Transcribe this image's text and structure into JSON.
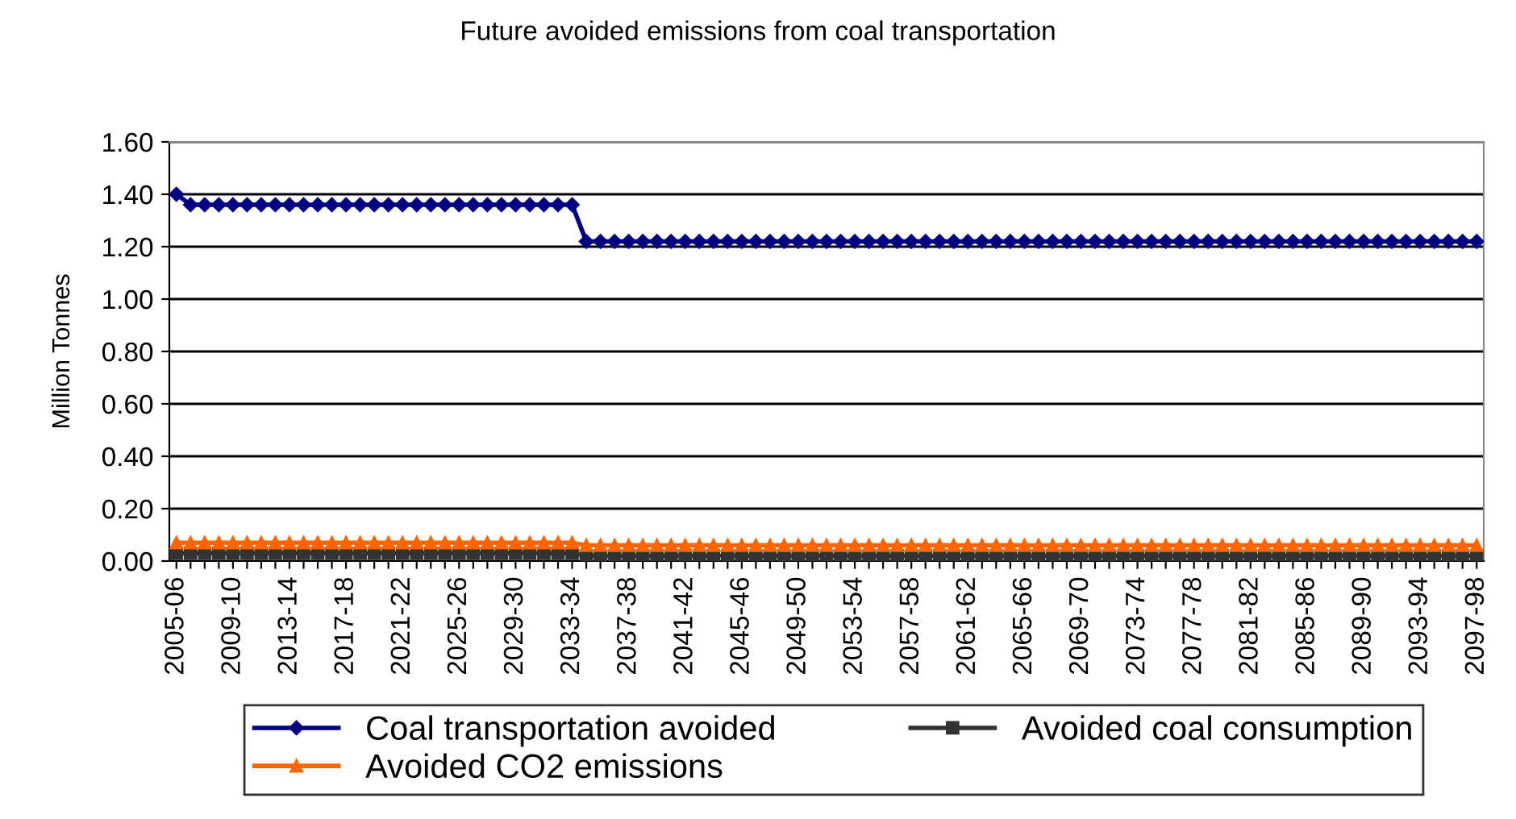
{
  "chart_data": {
    "type": "line",
    "title": "Future avoided emissions from coal transportation",
    "ylabel": "Million Tonnes",
    "categories": [
      "2005-06",
      null,
      null,
      null,
      "2009-10",
      null,
      null,
      null,
      "2013-14",
      null,
      null,
      null,
      "2017-18",
      null,
      null,
      null,
      "2021-22",
      null,
      null,
      null,
      "2025-26",
      null,
      null,
      null,
      "2029-30",
      null,
      null,
      null,
      "2033-34",
      null,
      null,
      null,
      "2037-38",
      null,
      null,
      null,
      "2041-42",
      null,
      null,
      null,
      "2045-46",
      null,
      null,
      null,
      "2049-50",
      null,
      null,
      null,
      "2053-54",
      null,
      null,
      null,
      "2057-58",
      null,
      null,
      null,
      "2061-62",
      null,
      null,
      null,
      "2065-66",
      null,
      null,
      null,
      "2069-70",
      null,
      null,
      null,
      "2073-74",
      null,
      null,
      null,
      "2077-78",
      null,
      null,
      null,
      "2081-82",
      null,
      null,
      null,
      "2085-86",
      null,
      null,
      null,
      "2089-90",
      null,
      null,
      null,
      "2093-94",
      null,
      null,
      null,
      "2097-98"
    ],
    "series": [
      {
        "name": "Coal transportation avoided",
        "color": "#000080",
        "marker": "diamond",
        "values": [
          1.4,
          1.36,
          1.36,
          1.36,
          1.36,
          1.36,
          1.36,
          1.36,
          1.36,
          1.36,
          1.36,
          1.36,
          1.36,
          1.36,
          1.36,
          1.36,
          1.36,
          1.36,
          1.36,
          1.36,
          1.36,
          1.36,
          1.36,
          1.36,
          1.36,
          1.36,
          1.36,
          1.36,
          1.36,
          1.22,
          1.22,
          1.22,
          1.22,
          1.22,
          1.22,
          1.22,
          1.22,
          1.22,
          1.22,
          1.22,
          1.22,
          1.22,
          1.22,
          1.22,
          1.22,
          1.22,
          1.22,
          1.22,
          1.22,
          1.22,
          1.22,
          1.22,
          1.22,
          1.22,
          1.22,
          1.22,
          1.22,
          1.22,
          1.22,
          1.22,
          1.22,
          1.22,
          1.22,
          1.22,
          1.22,
          1.22,
          1.22,
          1.22,
          1.22,
          1.22,
          1.22,
          1.22,
          1.22,
          1.22,
          1.22,
          1.22,
          1.22,
          1.22,
          1.22,
          1.22,
          1.22,
          1.22,
          1.22,
          1.22,
          1.22,
          1.22,
          1.22,
          1.22,
          1.22,
          1.22,
          1.22,
          1.22,
          1.22
        ]
      },
      {
        "name": "Avoided coal consumption",
        "color": "#333333",
        "marker": "square",
        "values": [
          0.03,
          0.03,
          0.03,
          0.03,
          0.03,
          0.03,
          0.03,
          0.03,
          0.03,
          0.03,
          0.03,
          0.03,
          0.03,
          0.03,
          0.03,
          0.03,
          0.03,
          0.03,
          0.03,
          0.03,
          0.03,
          0.03,
          0.03,
          0.03,
          0.03,
          0.03,
          0.03,
          0.03,
          0.03,
          0.02,
          0.02,
          0.02,
          0.02,
          0.02,
          0.02,
          0.02,
          0.02,
          0.02,
          0.02,
          0.02,
          0.02,
          0.02,
          0.02,
          0.02,
          0.02,
          0.02,
          0.02,
          0.02,
          0.02,
          0.02,
          0.02,
          0.02,
          0.02,
          0.02,
          0.02,
          0.02,
          0.02,
          0.02,
          0.02,
          0.02,
          0.02,
          0.02,
          0.02,
          0.02,
          0.02,
          0.02,
          0.02,
          0.02,
          0.02,
          0.02,
          0.02,
          0.02,
          0.02,
          0.02,
          0.02,
          0.02,
          0.02,
          0.02,
          0.02,
          0.02,
          0.02,
          0.02,
          0.02,
          0.02,
          0.02,
          0.02,
          0.02,
          0.02,
          0.02,
          0.02,
          0.02,
          0.02,
          0.02
        ]
      },
      {
        "name": "Avoided CO2 emissions",
        "color": "#ff6600",
        "marker": "triangle",
        "values": [
          0.07,
          0.07,
          0.07,
          0.07,
          0.07,
          0.07,
          0.07,
          0.07,
          0.07,
          0.07,
          0.07,
          0.07,
          0.07,
          0.07,
          0.07,
          0.07,
          0.07,
          0.07,
          0.07,
          0.07,
          0.07,
          0.07,
          0.07,
          0.07,
          0.07,
          0.07,
          0.07,
          0.07,
          0.07,
          0.06,
          0.06,
          0.06,
          0.06,
          0.06,
          0.06,
          0.06,
          0.06,
          0.06,
          0.06,
          0.06,
          0.06,
          0.06,
          0.06,
          0.06,
          0.06,
          0.06,
          0.06,
          0.06,
          0.06,
          0.06,
          0.06,
          0.06,
          0.06,
          0.06,
          0.06,
          0.06,
          0.06,
          0.06,
          0.06,
          0.06,
          0.06,
          0.06,
          0.06,
          0.06,
          0.06,
          0.06,
          0.06,
          0.06,
          0.06,
          0.06,
          0.06,
          0.06,
          0.06,
          0.06,
          0.06,
          0.06,
          0.06,
          0.06,
          0.06,
          0.06,
          0.06,
          0.06,
          0.06,
          0.06,
          0.06,
          0.06,
          0.06,
          0.06,
          0.06,
          0.06,
          0.06,
          0.06,
          0.06
        ]
      }
    ],
    "ylim": [
      0,
      1.6
    ],
    "yticks": [
      {
        "value": 0,
        "label": "0.00"
      },
      {
        "value": 0.2,
        "label": "0.20"
      },
      {
        "value": 0.4,
        "label": "0.40"
      },
      {
        "value": 0.6,
        "label": "0.60"
      },
      {
        "value": 0.8,
        "label": "0.80"
      },
      {
        "value": 1.0,
        "label": "1.00"
      },
      {
        "value": 1.2,
        "label": "1.20"
      },
      {
        "value": 1.4,
        "label": "1.40"
      },
      {
        "value": 1.6,
        "label": "1.60"
      }
    ],
    "grid": "y",
    "legend": "bottom",
    "line_style": "solid"
  }
}
